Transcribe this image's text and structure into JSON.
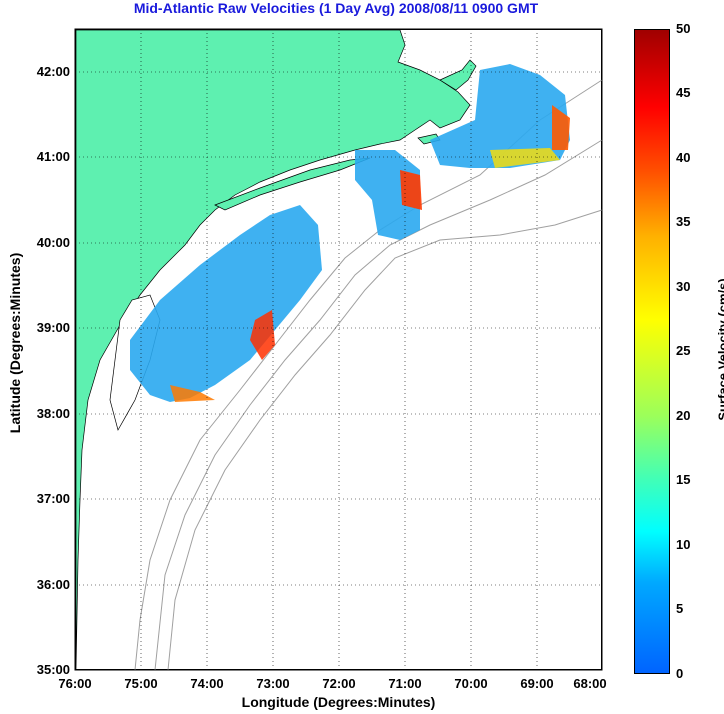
{
  "title": "Mid-Atlantic Raw Velocities (1 Day Avg) 2008/08/11 0900 GMT",
  "x_label": "Longitude (Degrees:Minutes)",
  "y_label": "Latitude (Degrees:Minutes)",
  "colorbar_label": "Surface Velocity (cm/s)",
  "x_ticks": [
    "76:00",
    "75:00",
    "74:00",
    "73:00",
    "72:00",
    "71:00",
    "70:00",
    "69:00",
    "68:00"
  ],
  "y_ticks": [
    "42:00",
    "41:00",
    "40:00",
    "39:00",
    "38:00",
    "37:00",
    "36:00",
    "35:00"
  ],
  "colorbar_ticks": [
    "50",
    "45",
    "40",
    "35",
    "30",
    "25",
    "20",
    "15",
    "10",
    "5",
    "0"
  ],
  "colors": {
    "title": "#1a1adc",
    "land": "#5ef0b0",
    "bathymetry": "#a0a0a0",
    "grid": "#000000"
  },
  "map_extent": {
    "lon": [
      -76,
      -68
    ],
    "lat": [
      35,
      42.5
    ]
  },
  "colorbar_range": [
    0,
    50
  ]
}
